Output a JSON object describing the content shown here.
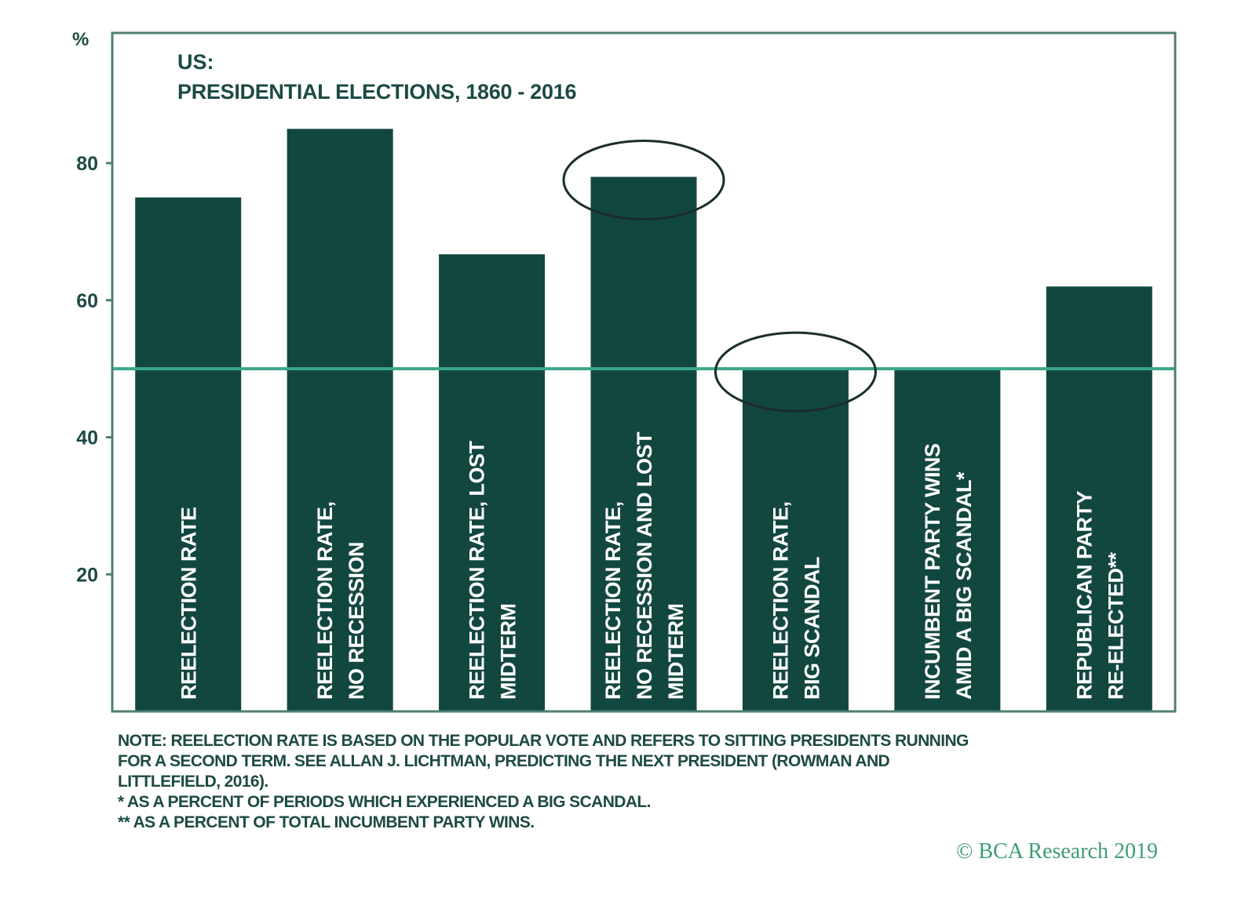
{
  "chart_data": {
    "type": "bar",
    "title": "US:",
    "subtitle": "PRESIDENTIAL ELECTIONS, 1860 - 2016",
    "ylabel": "%",
    "ylim": [
      0,
      99
    ],
    "yticks": [
      20,
      40,
      60,
      80
    ],
    "grid": false,
    "categories": [
      [
        "REELECTION RATE"
      ],
      [
        "REELECTION RATE,",
        "NO RECESSION"
      ],
      [
        "REELECTION RATE, LOST",
        "MIDTERM"
      ],
      [
        "REELECTION RATE,",
        "NO RECESSION AND LOST",
        "MIDTERM"
      ],
      [
        "REELECTION RATE,",
        "BIG SCANDAL"
      ],
      [
        "INCUMBENT PARTY WINS",
        "AMID A BIG SCANDAL*"
      ],
      [
        "REPUBLICAN PARTY",
        "RE-ELECTED**"
      ]
    ],
    "values": [
      75,
      85,
      66.7,
      78,
      50,
      50,
      62
    ],
    "reference_line": 50,
    "highlighted": [
      3,
      4
    ],
    "colors": {
      "bar": "#12473f",
      "reference_line": "#3aa88a",
      "text": "#1d4a44",
      "frame": "#4f7f74",
      "copyright": "#3f9d72"
    }
  },
  "notes": [
    "NOTE: REELECTION RATE IS BASED ON THE POPULAR VOTE AND REFERS TO SITTING PRESIDENTS RUNNING",
    "FOR A SECOND TERM. SEE ALLAN J. LICHTMAN, PREDICTING THE NEXT PRESIDENT (ROWMAN AND",
    "LITTLEFIELD, 2016).",
    "*   AS A PERCENT OF PERIODS WHICH EXPERIENCED A BIG SCANDAL.",
    "** AS A PERCENT OF TOTAL INCUMBENT PARTY WINS."
  ],
  "copyright": "© BCA Research 2019"
}
